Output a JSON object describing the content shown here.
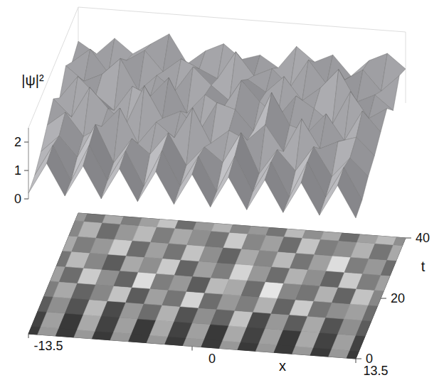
{
  "chart_data": {
    "type": "surface",
    "x_label": "x",
    "y_label": "t",
    "z_label": "|ψ|²",
    "x": [
      -13.5,
      -12,
      -10.5,
      -9,
      -7.5,
      -6,
      -4.5,
      -3,
      -1.5,
      0,
      1.5,
      3,
      4.5,
      6,
      7.5,
      9,
      10.5,
      12,
      13.5
    ],
    "y": [
      0,
      5,
      10,
      15,
      20,
      25,
      30,
      35,
      40
    ],
    "values": [
      [
        0.2,
        1.3,
        0.2,
        1.3,
        0.2,
        1.3,
        0.2,
        1.3,
        0.2,
        1.3,
        0.2,
        1.3,
        0.2,
        1.3,
        0.2,
        1.3,
        0.2,
        1.3,
        0.2
      ],
      [
        0.3,
        1.4,
        0.2,
        1.5,
        0.3,
        1.4,
        0.2,
        1.5,
        0.3,
        1.4,
        0.2,
        1.5,
        0.3,
        1.4,
        0.2,
        1.5,
        0.3,
        1.4,
        0.3
      ],
      [
        0.6,
        1.2,
        0.5,
        1.7,
        0.4,
        1.3,
        0.8,
        1.6,
        0.5,
        1.2,
        0.7,
        1.8,
        0.4,
        1.3,
        0.6,
        1.5,
        0.5,
        1.2,
        0.6
      ],
      [
        1.0,
        1.5,
        0.7,
        1.1,
        1.8,
        0.6,
        1.4,
        0.9,
        2.0,
        0.8,
        1.3,
        1.0,
        1.6,
        0.7,
        1.9,
        0.9,
        1.2,
        1.4,
        0.8
      ],
      [
        1.4,
        0.8,
        1.9,
        1.2,
        0.7,
        2.1,
        1.0,
        1.3,
        0.6,
        1.7,
        1.5,
        0.8,
        2.2,
        1.1,
        0.9,
        1.6,
        0.7,
        1.8,
        1.1
      ],
      [
        0.9,
        1.7,
        1.1,
        0.6,
        1.5,
        1.2,
        1.9,
        0.7,
        1.4,
        1.0,
        2.0,
        1.3,
        0.8,
        1.6,
        1.2,
        0.7,
        1.9,
        1.0,
        1.4
      ],
      [
        1.5,
        1.0,
        1.3,
        1.9,
        0.8,
        1.4,
        0.9,
        1.8,
        1.2,
        0.7,
        1.5,
        1.1,
        1.7,
        0.9,
        1.4,
        2.1,
        1.0,
        1.3,
        0.8
      ],
      [
        1.1,
        1.6,
        0.8,
        1.3,
        1.7,
        1.0,
        1.5,
        1.2,
        0.9,
        1.9,
        1.1,
        1.4,
        0.8,
        1.8,
        1.0,
        1.2,
        1.6,
        0.9,
        1.5
      ],
      [
        1.3,
        0.9,
        1.5,
        1.0,
        1.4,
        1.8,
        0.8,
        1.3,
        1.6,
        1.1,
        1.3,
        0.9,
        1.7,
        1.2,
        1.5,
        0.8,
        1.4,
        1.7,
        1.2
      ]
    ],
    "xlim": [
      -13.5,
      13.5
    ],
    "xticks": [
      -13.5,
      0,
      13.5
    ],
    "ylim": [
      0,
      40
    ],
    "yticks": [
      0,
      20,
      40
    ],
    "zlim": [
      0,
      2.5
    ],
    "zticks": [
      0,
      1,
      2
    ]
  }
}
